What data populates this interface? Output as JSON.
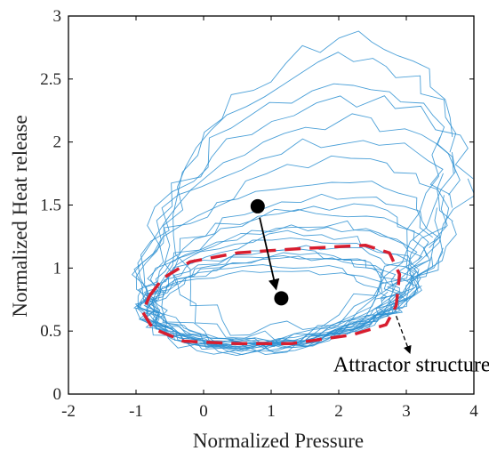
{
  "chart_data": {
    "type": "line",
    "title": "",
    "xlabel": "Normalized Pressure",
    "ylabel": "Normalized Heat release",
    "xlim": [
      -2,
      4
    ],
    "ylim": [
      0,
      3
    ],
    "xticks": [
      "-2",
      "-1",
      "0",
      "1",
      "2",
      "3",
      "4"
    ],
    "yticks": [
      "0",
      "0.5",
      "1",
      "1.5",
      "2",
      "2.5",
      "3"
    ],
    "grid": false,
    "legend": "none",
    "colors": {
      "trajectory": "#2b8fd1",
      "attractor": "#d81e2f",
      "marker": "#000000",
      "axis": "#000000"
    },
    "series": [
      {
        "style": "thin-lines",
        "loops": [
          {
            "cx": 1.05,
            "cy": 0.74,
            "rx": 1.85,
            "ry": 0.34,
            "tilt": 0.03
          },
          {
            "cx": 1.15,
            "cy": 0.8,
            "rx": 1.95,
            "ry": 0.42,
            "tilt": 0.05
          },
          {
            "cx": 1.0,
            "cy": 0.72,
            "rx": 1.75,
            "ry": 0.3,
            "tilt": 0.02
          },
          {
            "cx": 1.2,
            "cy": 0.86,
            "rx": 1.9,
            "ry": 0.48,
            "tilt": 0.07
          },
          {
            "cx": 1.1,
            "cy": 0.78,
            "rx": 2.0,
            "ry": 0.38,
            "tilt": 0.04
          },
          {
            "cx": 0.95,
            "cy": 0.7,
            "rx": 1.8,
            "ry": 0.28,
            "tilt": 0.02
          },
          {
            "cx": 1.25,
            "cy": 0.9,
            "rx": 2.05,
            "ry": 0.52,
            "tilt": 0.08
          },
          {
            "cx": 1.05,
            "cy": 0.76,
            "rx": 1.7,
            "ry": 0.36,
            "tilt": 0.03
          },
          {
            "cx": 1.3,
            "cy": 0.95,
            "rx": 2.1,
            "ry": 0.58,
            "tilt": 0.1
          },
          {
            "cx": 1.0,
            "cy": 0.74,
            "rx": 1.88,
            "ry": 0.33,
            "tilt": 0.04
          },
          {
            "cx": 1.4,
            "cy": 1.1,
            "rx": 2.25,
            "ry": 0.7,
            "tilt": 0.12
          },
          {
            "cx": 1.35,
            "cy": 1.25,
            "rx": 2.35,
            "ry": 0.85,
            "tilt": 0.14
          },
          {
            "cx": 1.45,
            "cy": 1.4,
            "rx": 2.2,
            "ry": 0.95,
            "tilt": 0.16
          },
          {
            "cx": 1.2,
            "cy": 1.05,
            "rx": 2.15,
            "ry": 0.62,
            "tilt": 0.09
          },
          {
            "cx": 1.55,
            "cy": 1.55,
            "rx": 2.05,
            "ry": 1.05,
            "tilt": 0.18
          },
          {
            "cx": 1.1,
            "cy": 0.82,
            "rx": 1.95,
            "ry": 0.44,
            "tilt": 0.05
          },
          {
            "cx": 1.3,
            "cy": 1.18,
            "rx": 2.3,
            "ry": 0.78,
            "tilt": 0.13
          },
          {
            "cx": 1.6,
            "cy": 1.65,
            "rx": 1.95,
            "ry": 1.1,
            "tilt": 0.2
          },
          {
            "cx": 1.05,
            "cy": 0.75,
            "rx": 1.83,
            "ry": 0.35,
            "tilt": 0.03
          },
          {
            "cx": 1.2,
            "cy": 0.92,
            "rx": 2.12,
            "ry": 0.55,
            "tilt": 0.08
          },
          {
            "cx": 1.5,
            "cy": 1.35,
            "rx": 2.4,
            "ry": 0.9,
            "tilt": 0.15
          },
          {
            "cx": 1.15,
            "cy": 0.84,
            "rx": 2.02,
            "ry": 0.46,
            "tilt": 0.06
          }
        ]
      },
      {
        "style": "dashed",
        "points": [
          [
            -0.8,
            0.78
          ],
          [
            -0.6,
            0.92
          ],
          [
            -0.2,
            1.05
          ],
          [
            0.5,
            1.12
          ],
          [
            1.3,
            1.15
          ],
          [
            2.0,
            1.17
          ],
          [
            2.4,
            1.18
          ],
          [
            2.75,
            1.12
          ],
          [
            2.9,
            0.95
          ],
          [
            2.85,
            0.7
          ],
          [
            2.7,
            0.55
          ],
          [
            2.2,
            0.47
          ],
          [
            1.3,
            0.4
          ],
          [
            0.5,
            0.4
          ],
          [
            -0.3,
            0.42
          ],
          [
            -0.75,
            0.52
          ],
          [
            -0.9,
            0.65
          ],
          [
            -0.8,
            0.78
          ]
        ]
      }
    ],
    "markers": [
      {
        "x": 0.8,
        "y": 1.49
      },
      {
        "x": 1.15,
        "y": 0.76
      }
    ],
    "arrows": [
      {
        "from": [
          0.83,
          1.4
        ],
        "to": [
          1.07,
          0.84
        ]
      },
      {
        "from": [
          2.85,
          0.62
        ],
        "to": [
          3.05,
          0.33
        ]
      }
    ],
    "annotations": [
      {
        "text": "Attractor structure",
        "x": 1.92,
        "y": 0.18
      }
    ]
  }
}
